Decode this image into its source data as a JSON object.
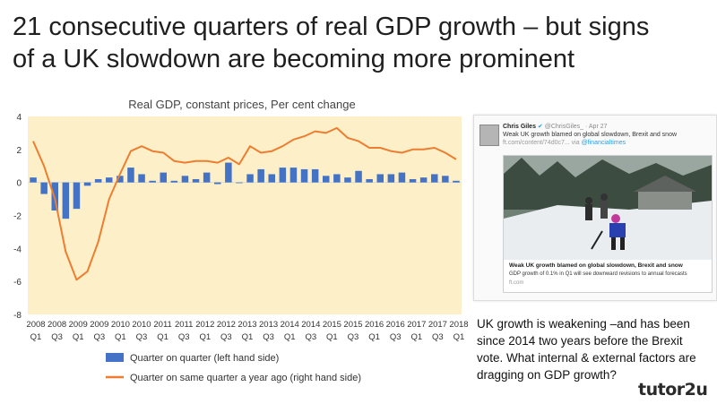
{
  "slide": {
    "title_line1": "21 consecutive quarters of real GDP growth – but signs",
    "title_line2": "of a UK slowdown are becoming more prominent",
    "body_text": "UK growth is weakening –and has been since 2014 two years before the Brexit vote. What internal & external factors are dragging on GDP growth?",
    "logo": "tutor2u"
  },
  "tweet": {
    "author": "Chris Giles",
    "verified_icon": "✔",
    "handle": "@ChrisGiles_",
    "date": "· Apr 27",
    "text": "Weak UK growth blamed on global slowdown, Brexit and snow",
    "link": "ft.com/content/74d0c7...",
    "via_prefix": "via",
    "via": "@financialtimes",
    "card_headline": "Weak UK growth blamed on global slowdown, Brexit and snow",
    "card_description": "GDP growth of 0.1% in Q1 will see downward revisions to annual forecasts",
    "card_domain": "ft.com"
  },
  "chart_data": {
    "type": "bar",
    "title": "Real GDP, constant prices, Per cent change",
    "ylim": [
      -8,
      4
    ],
    "yticks": [
      4,
      2,
      0,
      -2,
      -4,
      -6,
      -8
    ],
    "grid": false,
    "background": "#fdf0c8",
    "colors": {
      "bar": "#4472c4",
      "line": "#ed7d31"
    },
    "x_tick_labels": [
      {
        "year": "2008",
        "quarter": "Q1"
      },
      {
        "year": "2008",
        "quarter": "Q3"
      },
      {
        "year": "2009",
        "quarter": "Q1"
      },
      {
        "year": "2009",
        "quarter": "Q3"
      },
      {
        "year": "2010",
        "quarter": "Q1"
      },
      {
        "year": "2010",
        "quarter": "Q3"
      },
      {
        "year": "2011",
        "quarter": "Q1"
      },
      {
        "year": "2011",
        "quarter": "Q3"
      },
      {
        "year": "2012",
        "quarter": "Q1"
      },
      {
        "year": "2012",
        "quarter": "Q3"
      },
      {
        "year": "2013",
        "quarter": "Q1"
      },
      {
        "year": "2013",
        "quarter": "Q3"
      },
      {
        "year": "2014",
        "quarter": "Q1"
      },
      {
        "year": "2014",
        "quarter": "Q3"
      },
      {
        "year": "2015",
        "quarter": "Q1"
      },
      {
        "year": "2015",
        "quarter": "Q3"
      },
      {
        "year": "2016",
        "quarter": "Q1"
      },
      {
        "year": "2016",
        "quarter": "Q3"
      },
      {
        "year": "2017",
        "quarter": "Q1"
      },
      {
        "year": "2017",
        "quarter": "Q3"
      },
      {
        "year": "2018",
        "quarter": "Q1"
      }
    ],
    "series": [
      {
        "name": "Quarter on quarter (left hand side)",
        "type": "bar",
        "values": [
          0.3,
          -0.7,
          -1.7,
          -2.2,
          -1.6,
          -0.2,
          0.2,
          0.3,
          0.4,
          0.9,
          0.5,
          0.1,
          0.6,
          0.1,
          0.4,
          0.2,
          0.6,
          -0.1,
          1.2,
          0.0,
          0.5,
          0.8,
          0.5,
          0.9,
          0.9,
          0.8,
          0.8,
          0.4,
          0.5,
          0.3,
          0.7,
          0.2,
          0.5,
          0.5,
          0.6,
          0.2,
          0.3,
          0.5,
          0.4,
          0.1
        ]
      },
      {
        "name": "Quarter on same quarter a year ago (right hand side)",
        "type": "line",
        "values": [
          2.5,
          1.0,
          -1.0,
          -4.2,
          -5.9,
          -5.4,
          -3.6,
          -1.0,
          0.5,
          1.9,
          2.2,
          1.9,
          1.8,
          1.3,
          1.2,
          1.3,
          1.3,
          1.2,
          1.5,
          1.1,
          2.2,
          1.8,
          1.9,
          2.2,
          2.6,
          2.8,
          3.1,
          3.0,
          3.3,
          2.7,
          2.5,
          2.1,
          2.1,
          1.9,
          1.8,
          2.0,
          2.0,
          2.1,
          1.8,
          1.4
        ]
      }
    ]
  }
}
